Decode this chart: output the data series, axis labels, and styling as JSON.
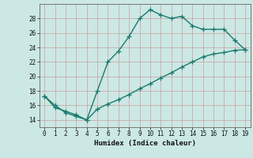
{
  "xlabel": "Humidex (Indice chaleur)",
  "xlim": [
    -0.5,
    19.5
  ],
  "ylim": [
    13.0,
    30.0
  ],
  "yticks": [
    14,
    16,
    18,
    20,
    22,
    24,
    26,
    28
  ],
  "xticks": [
    0,
    1,
    2,
    3,
    4,
    5,
    6,
    7,
    8,
    9,
    10,
    11,
    12,
    13,
    14,
    15,
    16,
    17,
    18,
    19
  ],
  "bg_color": "#cce8e4",
  "grid_color": "#aacfca",
  "line_color": "#1a7a6e",
  "curve1_x": [
    0,
    1,
    2,
    3,
    4,
    5,
    6,
    7,
    8,
    9,
    10,
    11,
    12,
    13,
    14,
    15,
    16,
    17,
    18,
    19
  ],
  "curve1_y": [
    17.3,
    16.0,
    15.0,
    14.5,
    14.0,
    18.0,
    22.0,
    23.5,
    25.5,
    28.0,
    29.2,
    28.5,
    28.0,
    28.3,
    27.0,
    26.5,
    26.5,
    26.5,
    25.0,
    23.7
  ],
  "curve2_x": [
    0,
    1,
    2,
    3,
    4,
    5,
    6,
    7,
    8,
    9,
    10,
    11,
    12,
    13,
    14,
    15,
    16,
    17,
    18,
    19
  ],
  "curve2_y": [
    17.3,
    15.7,
    15.2,
    14.7,
    14.0,
    15.5,
    16.2,
    16.8,
    17.5,
    18.3,
    19.0,
    19.8,
    20.5,
    21.3,
    22.0,
    22.7,
    23.1,
    23.3,
    23.6,
    23.7
  ],
  "marker": "+",
  "markersize": 4,
  "linewidth": 1.0
}
